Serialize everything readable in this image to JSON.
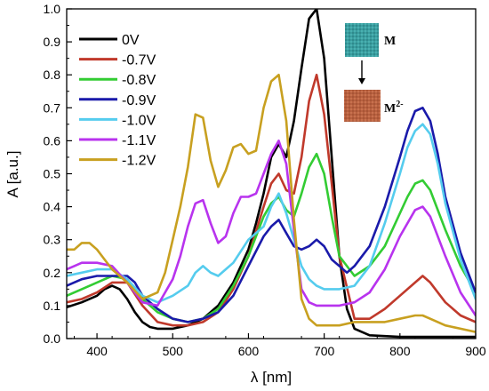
{
  "chart_data": {
    "type": "line",
    "xlabel": "λ [nm]",
    "ylabel": "A [a.u.]",
    "xlim": [
      360,
      900
    ],
    "ylim": [
      0.0,
      1.0
    ],
    "xticks": [
      400,
      500,
      600,
      700,
      800,
      900
    ],
    "yticks": [
      "0.0",
      "0.1",
      "0.2",
      "0.3",
      "0.4",
      "0.5",
      "0.6",
      "0.7",
      "0.8",
      "0.9",
      "1.0"
    ],
    "grid": false,
    "legend_position": "top-left",
    "series": [
      {
        "name": "0V",
        "color": "#000000",
        "x": [
          360,
          380,
          400,
          410,
          420,
          430,
          440,
          450,
          460,
          470,
          480,
          500,
          520,
          540,
          560,
          580,
          600,
          610,
          620,
          630,
          640,
          650,
          660,
          670,
          680,
          690,
          700,
          710,
          720,
          730,
          740,
          760,
          800,
          850,
          900
        ],
        "y": [
          0.095,
          0.11,
          0.13,
          0.15,
          0.16,
          0.15,
          0.12,
          0.08,
          0.05,
          0.035,
          0.03,
          0.03,
          0.04,
          0.06,
          0.1,
          0.17,
          0.27,
          0.35,
          0.44,
          0.55,
          0.59,
          0.55,
          0.66,
          0.82,
          0.97,
          1.0,
          0.85,
          0.55,
          0.25,
          0.09,
          0.03,
          0.01,
          0.005,
          0.005,
          0.005
        ]
      },
      {
        "name": "-0.7V",
        "color": "#c0392b",
        "x": [
          360,
          380,
          400,
          420,
          440,
          460,
          480,
          500,
          520,
          540,
          560,
          580,
          600,
          620,
          630,
          640,
          650,
          660,
          670,
          680,
          690,
          700,
          710,
          720,
          740,
          760,
          780,
          800,
          820,
          830,
          840,
          860,
          880,
          900
        ],
        "y": [
          0.11,
          0.12,
          0.14,
          0.17,
          0.17,
          0.1,
          0.05,
          0.04,
          0.04,
          0.05,
          0.08,
          0.15,
          0.25,
          0.4,
          0.47,
          0.5,
          0.45,
          0.44,
          0.55,
          0.72,
          0.8,
          0.68,
          0.47,
          0.25,
          0.06,
          0.06,
          0.09,
          0.13,
          0.17,
          0.19,
          0.17,
          0.11,
          0.07,
          0.05
        ]
      },
      {
        "name": "-0.8V",
        "color": "#33cc33",
        "x": [
          360,
          380,
          400,
          420,
          440,
          460,
          480,
          500,
          520,
          540,
          560,
          580,
          600,
          620,
          630,
          640,
          650,
          660,
          670,
          680,
          690,
          700,
          710,
          720,
          740,
          760,
          780,
          800,
          810,
          820,
          830,
          840,
          860,
          880,
          900
        ],
        "y": [
          0.13,
          0.15,
          0.17,
          0.19,
          0.18,
          0.12,
          0.08,
          0.06,
          0.05,
          0.06,
          0.09,
          0.16,
          0.25,
          0.37,
          0.41,
          0.43,
          0.39,
          0.37,
          0.44,
          0.52,
          0.56,
          0.5,
          0.37,
          0.25,
          0.19,
          0.22,
          0.28,
          0.38,
          0.43,
          0.47,
          0.48,
          0.45,
          0.33,
          0.22,
          0.14
        ]
      },
      {
        "name": "-0.9V",
        "color": "#1a1aaa",
        "x": [
          360,
          380,
          400,
          420,
          440,
          450,
          460,
          480,
          500,
          520,
          540,
          560,
          580,
          600,
          620,
          630,
          640,
          650,
          660,
          670,
          680,
          690,
          700,
          710,
          720,
          730,
          740,
          760,
          780,
          800,
          810,
          820,
          830,
          840,
          850,
          860,
          880,
          900
        ],
        "y": [
          0.16,
          0.18,
          0.19,
          0.19,
          0.19,
          0.17,
          0.13,
          0.09,
          0.06,
          0.05,
          0.06,
          0.08,
          0.13,
          0.22,
          0.31,
          0.34,
          0.36,
          0.32,
          0.28,
          0.27,
          0.28,
          0.3,
          0.28,
          0.24,
          0.22,
          0.2,
          0.22,
          0.28,
          0.4,
          0.55,
          0.63,
          0.69,
          0.7,
          0.66,
          0.56,
          0.43,
          0.26,
          0.14
        ]
      },
      {
        "name": "-1.0V",
        "color": "#55ccee",
        "x": [
          360,
          380,
          400,
          420,
          440,
          460,
          480,
          500,
          520,
          530,
          540,
          550,
          560,
          580,
          600,
          620,
          630,
          640,
          650,
          660,
          670,
          680,
          690,
          700,
          720,
          740,
          760,
          780,
          800,
          810,
          820,
          830,
          840,
          850,
          860,
          880,
          900
        ],
        "y": [
          0.19,
          0.2,
          0.21,
          0.21,
          0.18,
          0.13,
          0.11,
          0.13,
          0.16,
          0.2,
          0.22,
          0.2,
          0.19,
          0.23,
          0.3,
          0.34,
          0.4,
          0.44,
          0.38,
          0.3,
          0.22,
          0.18,
          0.16,
          0.15,
          0.15,
          0.16,
          0.22,
          0.35,
          0.5,
          0.58,
          0.63,
          0.65,
          0.62,
          0.53,
          0.41,
          0.24,
          0.12
        ]
      },
      {
        "name": "-1.1V",
        "color": "#b833ee",
        "x": [
          360,
          370,
          380,
          390,
          400,
          420,
          440,
          460,
          480,
          500,
          510,
          520,
          530,
          540,
          550,
          560,
          570,
          580,
          590,
          600,
          610,
          620,
          630,
          640,
          650,
          660,
          670,
          680,
          690,
          700,
          720,
          740,
          760,
          780,
          800,
          820,
          830,
          840,
          860,
          880,
          900
        ],
        "y": [
          0.21,
          0.22,
          0.23,
          0.23,
          0.23,
          0.22,
          0.17,
          0.11,
          0.1,
          0.18,
          0.25,
          0.34,
          0.41,
          0.42,
          0.35,
          0.29,
          0.31,
          0.38,
          0.43,
          0.43,
          0.44,
          0.5,
          0.56,
          0.6,
          0.53,
          0.33,
          0.15,
          0.11,
          0.1,
          0.1,
          0.1,
          0.11,
          0.14,
          0.21,
          0.31,
          0.39,
          0.4,
          0.37,
          0.25,
          0.14,
          0.07
        ]
      },
      {
        "name": "-1.2V",
        "color": "#c8a020",
        "x": [
          360,
          370,
          380,
          390,
          400,
          410,
          420,
          440,
          460,
          480,
          490,
          500,
          510,
          520,
          530,
          540,
          550,
          560,
          570,
          580,
          590,
          600,
          610,
          620,
          630,
          640,
          650,
          660,
          670,
          680,
          690,
          700,
          720,
          740,
          760,
          780,
          800,
          820,
          830,
          840,
          860,
          880,
          900
        ],
        "y": [
          0.27,
          0.27,
          0.29,
          0.29,
          0.27,
          0.24,
          0.21,
          0.17,
          0.12,
          0.14,
          0.2,
          0.3,
          0.4,
          0.52,
          0.68,
          0.67,
          0.54,
          0.46,
          0.51,
          0.58,
          0.59,
          0.56,
          0.57,
          0.7,
          0.78,
          0.8,
          0.66,
          0.36,
          0.12,
          0.06,
          0.04,
          0.04,
          0.04,
          0.05,
          0.05,
          0.05,
          0.06,
          0.07,
          0.07,
          0.06,
          0.04,
          0.03,
          0.02
        ]
      }
    ]
  },
  "inset": {
    "top_label": "M",
    "bottom_label": "M2-",
    "top_color": "#3a9ea0",
    "bottom_color": "#b86040",
    "arrow_icon": "down-arrow-icon"
  }
}
